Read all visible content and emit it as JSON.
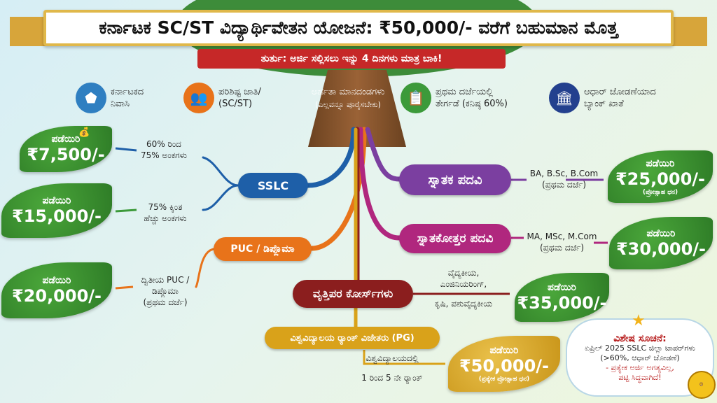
{
  "title": "ಕರ್ನಾಟಕ SC/ST ವಿದ್ಯಾರ್ಥಿವೇತನ ಯೋಜನೆ: ₹50,000/- ವರೆಗೆ ಬಹುಮಾನ ಮೊತ್ತ",
  "urgent": "ತುರ್ತು: ಅರ್ಜಿ ಸಲ್ಲಿಸಲು ಇನ್ನು 4 ದಿನಗಳು ಮಾತ್ರ ಬಾಕಿ!",
  "criteria": {
    "heading": "ಅರ್ಹತಾ ಮಾನದಂಡಗಳು",
    "subheading": "(ಎಲ್ಲವನ್ನೂ ಪೂರೈಸಬೇಕು)",
    "items": [
      {
        "line1": "ಕರ್ನಾಟಕದ",
        "line2": "ನಿವಾಸಿ",
        "icon": "karnataka-map-icon",
        "color": "#2f7fc1"
      },
      {
        "line1": "ಪರಿಶಿಷ್ಟ ಜಾತಿ/",
        "line2": "(SC/ST)",
        "icon": "people-group-icon",
        "color": "#e8731a"
      },
      {
        "line1": "ಪ್ರಥಮ ದರ್ಜೆಯಲ್ಲಿ",
        "line2": "ತೇರ್ಗಡೆ (ಕನಿಷ್ಠ 60%)",
        "icon": "checklist-icon",
        "color": "#3c9a3a"
      },
      {
        "line1": "ಆಧಾರ್ ಜೋಡಣೆಯಾದ",
        "line2": "ಬ್ಯಾಂಕ್ ಖಾತೆ",
        "icon": "bank-icon",
        "color": "#23408e"
      }
    ]
  },
  "levels": {
    "sslc": "SSLC",
    "puc": "PUC / ಡಿಪ್ಲೊಮಾ",
    "degree": "ಸ್ನಾತಕ ಪದವಿ",
    "pg": "ಸ್ನಾತಕೋತ್ತರ ಪದವಿ",
    "professional": "ವೃತ್ತಿಪರ ಕೋರ್ಸ್‌ಗಳು",
    "rank": "ವಿಶ್ವವಿದ್ಯಾಲಯ ರ್‍ಯಾಂಕ್ ವಿಜೇತರು (PG)"
  },
  "conditions": {
    "sslc_a": [
      "60% ರಿಂದ",
      "75% ಅಂಕಗಳು"
    ],
    "sslc_b": [
      "75% ಕ್ಕಿಂತ",
      "ಹೆಚ್ಚು ಅಂಕಗಳು"
    ],
    "puc": [
      "ದ್ವಿತೀಯ PUC /",
      "ಡಿಪ್ಲೊಮಾ",
      "(ಪ್ರಥಮ ದರ್ಜೆ)"
    ],
    "degree": [
      "BA, B.Sc, B.Com",
      "(ಪ್ರಥಮ ದರ್ಜೆ)"
    ],
    "pg": [
      "MA, MSc, M.Com",
      "(ಪ್ರಥಮ ದರ್ಜೆ)"
    ],
    "professional": [
      "ವೈದ್ಯಕೀಯ,",
      "ಎಂಜಿನಿಯರಿಂಗ್,",
      "ಕೃಷಿ, ಪಶುವೈದ್ಯಕೀಯ"
    ],
    "rank": [
      "ವಿಶ್ವವಿದ್ಯಾಲಯದಲ್ಲಿ",
      "1 ರಿಂದ 5 ನೇ ರ್‍ಯಾಂಕ್"
    ]
  },
  "get_label": "ಪಡೆಯಿರಿ",
  "rewards": {
    "sslc_a": "₹7,500/-",
    "sslc_b": "₹15,000/-",
    "puc": "₹20,000/-",
    "degree": "₹25,000/-",
    "degree_note": "(ಪ್ರೋತ್ಸಾಹ ಧನ)",
    "pg": "₹30,000/-",
    "professional": "₹35,000/-",
    "rank": "₹50,000/-",
    "rank_note": "(ಪ್ರತ್ಯೇಕ ಪ್ರೋತ್ಸಾಹ ಧನ)"
  },
  "note": {
    "heading": "ವಿಶೇಷ ಸೂಚನೆ:",
    "line1": "ಏಪ್ರಿಲ್ 2025 SSLC ಜಿಲ್ಲಾ ಟಾಪರ್‌ಗಳು",
    "line2": "(>60%, ಆಧಾರ್ ಜೋಡಣೆ)",
    "line3": "- ಪ್ರತ್ಯೇಕ ಅರ್ಜಿ ಅಗತ್ಯವಿಲ್ಲ,",
    "line4": "ಪಟ್ಟಿ ಸಿದ್ಧವಾಗಿದೆ!"
  },
  "seal": "GOVERNMENT OF KARNATAKA",
  "colors": {
    "sslc": "#1e5fa8",
    "puc": "#e8731a",
    "degree": "#7b3fa0",
    "pg": "#b0277e",
    "professional": "#8b1e1e",
    "rank": "#d9a21a",
    "leaf": "#3a8f30",
    "urgent": "#c62828"
  }
}
